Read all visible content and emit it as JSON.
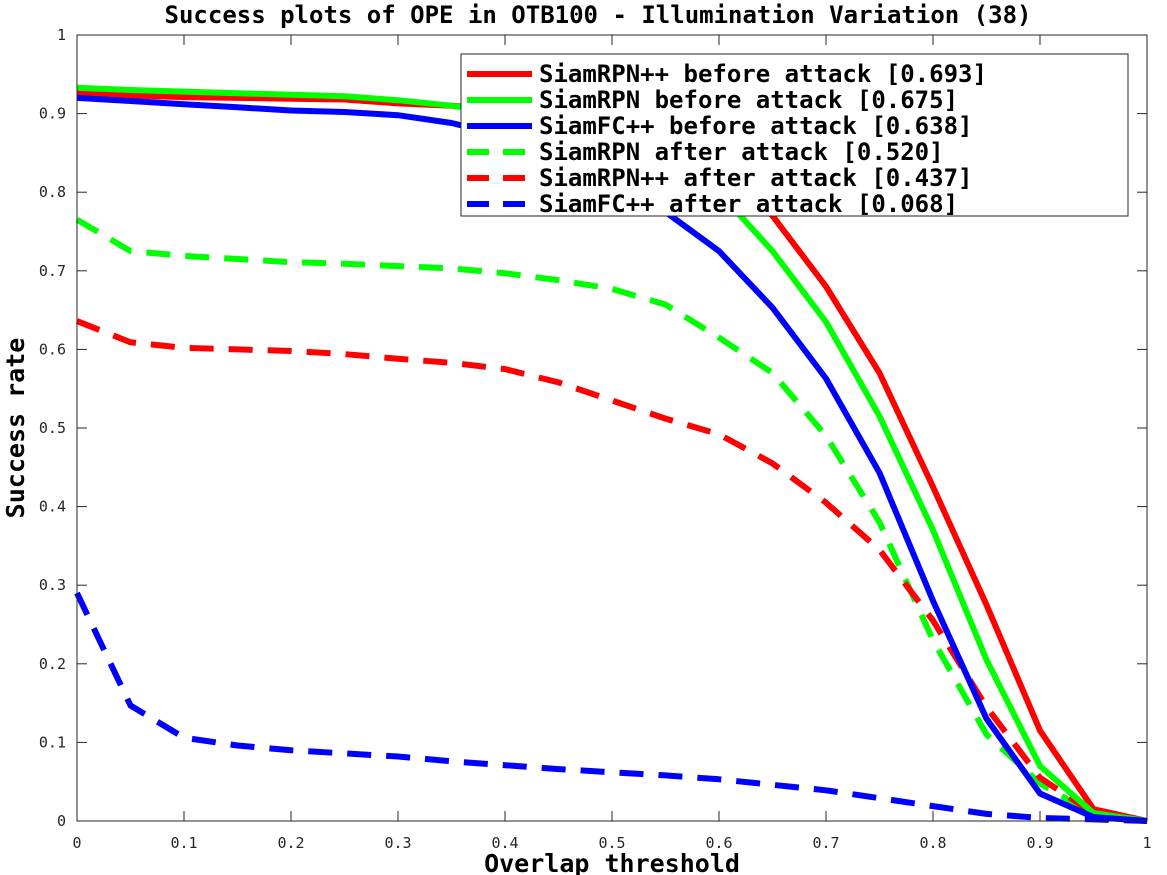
{
  "chart_data": {
    "type": "line",
    "title": "Success plots of OPE in OTB100 - Illumination Variation (38)",
    "xlabel": "Overlap threshold",
    "ylabel": "Success rate",
    "xlim": [
      0,
      1
    ],
    "ylim": [
      0,
      1
    ],
    "x_ticks": [
      "0",
      "0.1",
      "0.2",
      "0.3",
      "0.4",
      "0.5",
      "0.6",
      "0.7",
      "0.8",
      "0.9",
      "1"
    ],
    "y_ticks": [
      "0",
      "0.1",
      "0.2",
      "0.3",
      "0.4",
      "0.5",
      "0.6",
      "0.7",
      "0.8",
      "0.9",
      "1"
    ],
    "grid": false,
    "legend_position": "top-right",
    "x": [
      0,
      0.05,
      0.1,
      0.15,
      0.2,
      0.25,
      0.3,
      0.35,
      0.4,
      0.45,
      0.5,
      0.55,
      0.6,
      0.65,
      0.7,
      0.75,
      0.8,
      0.85,
      0.9,
      0.95,
      1
    ],
    "series": [
      {
        "name": "SiamRPN++ before attack [0.693]",
        "color": "#ff0000",
        "dashed": false,
        "values": [
          0.926,
          0.923,
          0.921,
          0.92,
          0.919,
          0.918,
          0.913,
          0.91,
          0.905,
          0.895,
          0.885,
          0.86,
          0.84,
          0.77,
          0.68,
          0.57,
          0.425,
          0.275,
          0.115,
          0.015,
          0.0
        ]
      },
      {
        "name": "SiamRPN before attack [0.675]",
        "color": "#00ff00",
        "dashed": false,
        "values": [
          0.933,
          0.93,
          0.928,
          0.926,
          0.924,
          0.922,
          0.917,
          0.91,
          0.9,
          0.885,
          0.87,
          0.84,
          0.8,
          0.725,
          0.635,
          0.515,
          0.37,
          0.205,
          0.07,
          0.01,
          0.0
        ]
      },
      {
        "name": "SiamFC++ before attack [0.638]",
        "color": "#0000ff",
        "dashed": false,
        "values": [
          0.92,
          0.916,
          0.912,
          0.908,
          0.904,
          0.902,
          0.898,
          0.888,
          0.872,
          0.845,
          0.815,
          0.775,
          0.725,
          0.653,
          0.563,
          0.443,
          0.28,
          0.13,
          0.035,
          0.005,
          0.0
        ]
      },
      {
        "name": "SiamRPN after attack [0.520]",
        "color": "#00ff00",
        "dashed": true,
        "values": [
          0.765,
          0.725,
          0.719,
          0.715,
          0.711,
          0.709,
          0.706,
          0.703,
          0.697,
          0.688,
          0.677,
          0.657,
          0.615,
          0.57,
          0.49,
          0.38,
          0.23,
          0.11,
          0.048,
          0.008,
          0.0
        ]
      },
      {
        "name": "SiamRPN++ after attack [0.437]",
        "color": "#ff0000",
        "dashed": true,
        "values": [
          0.636,
          0.609,
          0.602,
          0.6,
          0.598,
          0.594,
          0.588,
          0.583,
          0.575,
          0.558,
          0.535,
          0.512,
          0.492,
          0.455,
          0.405,
          0.345,
          0.255,
          0.145,
          0.055,
          0.01,
          0.0
        ]
      },
      {
        "name": "SiamFC++ after attack [0.068]",
        "color": "#0000ff",
        "dashed": true,
        "values": [
          0.29,
          0.147,
          0.106,
          0.096,
          0.09,
          0.086,
          0.082,
          0.076,
          0.071,
          0.066,
          0.062,
          0.058,
          0.053,
          0.046,
          0.039,
          0.029,
          0.019,
          0.009,
          0.004,
          0.002,
          0.0
        ]
      }
    ]
  }
}
